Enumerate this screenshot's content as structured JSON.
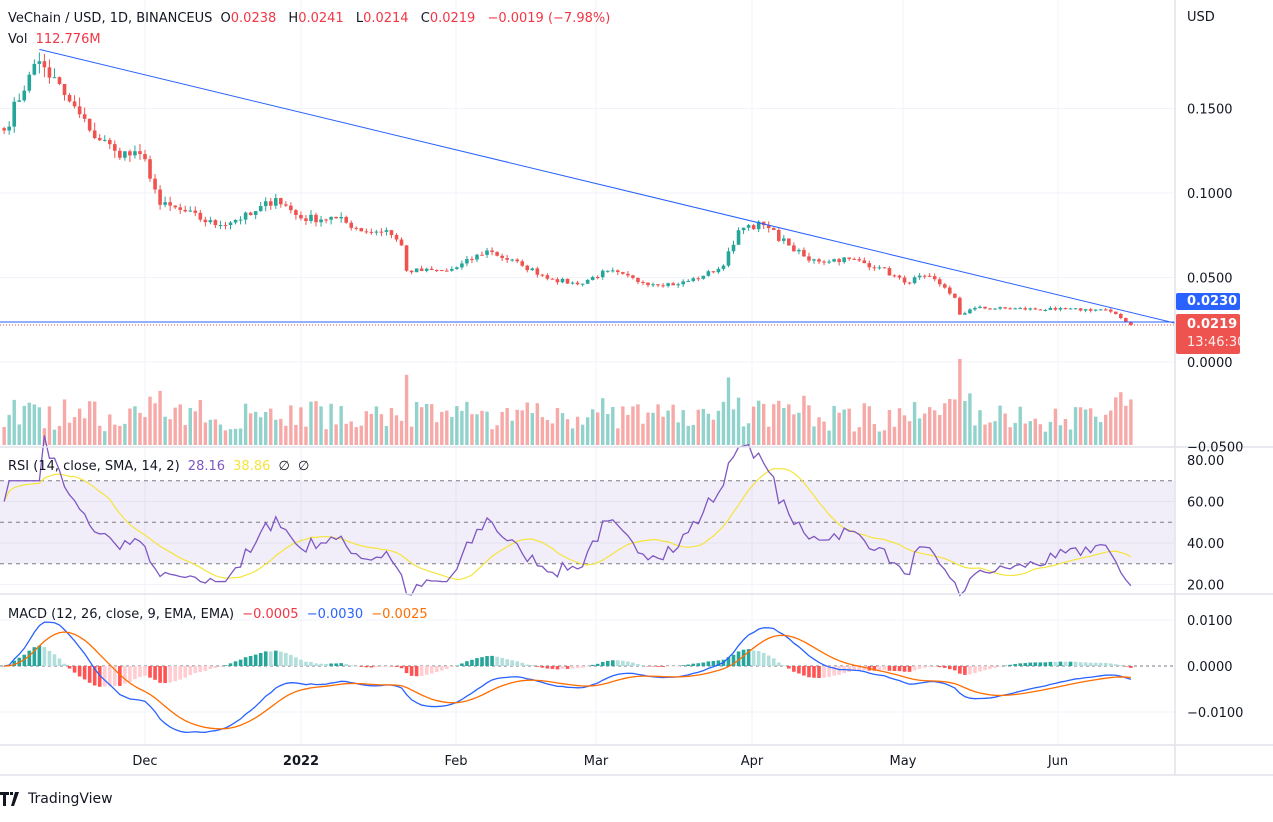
{
  "header": {
    "symbol": "VeChain / USD, 1D, BINANCEUS",
    "o_label": "O",
    "o": "0.0238",
    "h_label": "H",
    "h": "0.0241",
    "l_label": "L",
    "l": "0.0214",
    "c_label": "C",
    "c": "0.0219",
    "change": "−0.0019 (−7.98%)",
    "vol_label": "Vol",
    "vol": "112.776M"
  },
  "rsi_legend": {
    "label": "RSI (14, close, SMA, 14, 2)",
    "rsi": "28.16",
    "sma": "38.86",
    "x1": "∅",
    "x2": "∅"
  },
  "macd_legend": {
    "label": "MACD (12, 26, close, 9, EMA, EMA)",
    "hist": "−0.0005",
    "macd": "−0.0030",
    "signal": "−0.0025"
  },
  "price_axis": {
    "currency": "USD",
    "ticks": [
      "0.1500",
      "0.1000",
      "0.0500",
      "0.0000",
      "−0.0500"
    ]
  },
  "rsi_axis": {
    "ticks": [
      "80.00",
      "60.00",
      "40.00",
      "20.00"
    ]
  },
  "macd_axis": {
    "ticks": [
      "0.0100",
      "0.0000",
      "−0.0100"
    ]
  },
  "time_axis": {
    "ticks": [
      "Dec",
      "2022",
      "Feb",
      "Mar",
      "Apr",
      "May",
      "Jun"
    ]
  },
  "tags": {
    "trendline_value": "0.0230",
    "last_price": "0.0219",
    "countdown": "13:46:30"
  },
  "brand": "TradingView",
  "colors": {
    "up": "#26a69a",
    "down": "#ef5350",
    "trendline": "#2962ff",
    "rsi": "#7e57c2",
    "rsi_sma": "#f5e43d",
    "macd": "#2962ff",
    "signal": "#ff6d00"
  },
  "chart_data": {
    "type": "candlestick",
    "title": "VeChain / USD, 1D, BINANCEUS",
    "ylim": [
      -0.05,
      0.2
    ],
    "x_range": [
      "2021-11-03",
      "2022-06-15"
    ],
    "approx_close_anchors": [
      [
        "2021-11-03",
        0.137
      ],
      [
        "2021-11-08",
        0.17
      ],
      [
        "2021-11-10",
        0.178
      ],
      [
        "2021-11-15",
        0.158
      ],
      [
        "2021-11-20",
        0.137
      ],
      [
        "2021-11-25",
        0.125
      ],
      [
        "2021-12-01",
        0.12
      ],
      [
        "2021-12-04",
        0.093
      ],
      [
        "2021-12-08",
        0.09
      ],
      [
        "2021-12-15",
        0.081
      ],
      [
        "2021-12-22",
        0.087
      ],
      [
        "2021-12-27",
        0.097
      ],
      [
        "2022-01-01",
        0.085
      ],
      [
        "2022-01-08",
        0.085
      ],
      [
        "2022-01-14",
        0.077
      ],
      [
        "2022-01-18",
        0.078
      ],
      [
        "2022-01-21",
        0.069
      ],
      [
        "2022-01-22",
        0.054
      ],
      [
        "2022-01-30",
        0.054
      ],
      [
        "2022-02-01",
        0.056
      ],
      [
        "2022-02-07",
        0.066
      ],
      [
        "2022-02-14",
        0.057
      ],
      [
        "2022-02-20",
        0.049
      ],
      [
        "2022-02-25",
        0.046
      ],
      [
        "2022-03-03",
        0.054
      ],
      [
        "2022-03-10",
        0.047
      ],
      [
        "2022-03-17",
        0.046
      ],
      [
        "2022-03-22",
        0.051
      ],
      [
        "2022-03-26",
        0.057
      ],
      [
        "2022-03-29",
        0.078
      ],
      [
        "2022-03-31",
        0.081
      ],
      [
        "2022-04-03",
        0.081
      ],
      [
        "2022-04-08",
        0.069
      ],
      [
        "2022-04-12",
        0.06
      ],
      [
        "2022-04-20",
        0.061
      ],
      [
        "2022-04-26",
        0.056
      ],
      [
        "2022-05-01",
        0.047
      ],
      [
        "2022-05-05",
        0.051
      ],
      [
        "2022-05-08",
        0.046
      ],
      [
        "2022-05-11",
        0.038
      ],
      [
        "2022-05-12",
        0.028
      ],
      [
        "2022-05-15",
        0.032
      ],
      [
        "2022-05-31",
        0.031
      ],
      [
        "2022-06-10",
        0.031
      ],
      [
        "2022-06-13",
        0.026
      ],
      [
        "2022-06-15",
        0.0219
      ]
    ],
    "trendline": {
      "from": [
        "2021-11-10",
        0.185
      ],
      "to_value_at_right_edge": 0.023
    },
    "indicators": [
      "Volume",
      "RSI 14 with SMA 14",
      "MACD 12/26/9"
    ]
  }
}
